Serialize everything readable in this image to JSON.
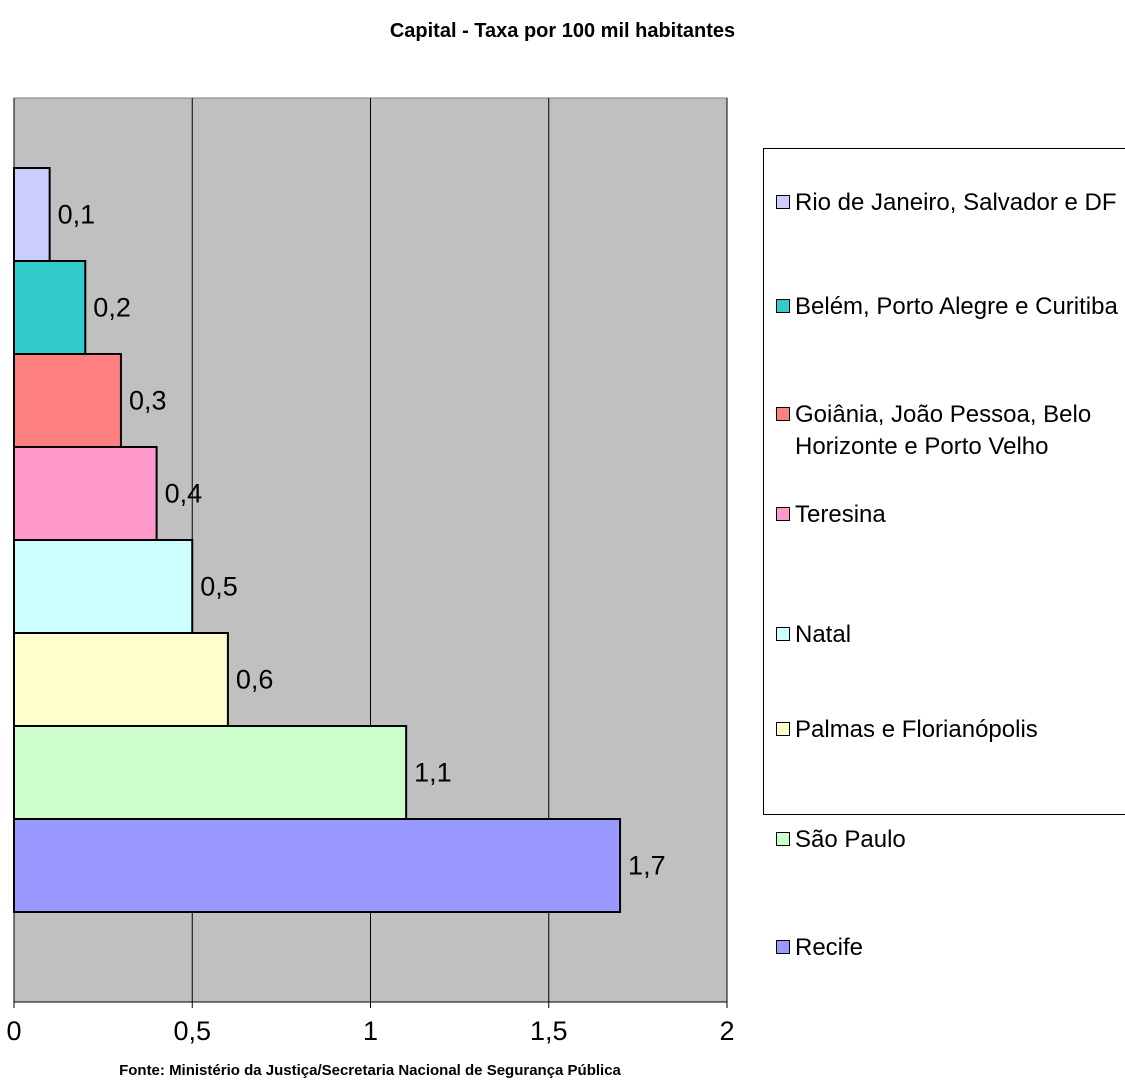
{
  "chart_data": {
    "type": "bar",
    "orientation": "horizontal",
    "title": "Capital - Taxa por 100 mil habitantes",
    "footer": "Fonte: Ministério da Justiça/Secretaria Nacional de Segurança Pública",
    "xlim": [
      0,
      2
    ],
    "x_ticks": [
      "0",
      "0,5",
      "1",
      "1,5",
      "2"
    ],
    "grid": "vertical",
    "plot_background": "#C0C0C0",
    "legend_position": "right",
    "series": [
      {
        "name": "Rio de Janeiro, Salvador e DF",
        "value": 0.1,
        "label": "0,1",
        "color": "#CCCCFF"
      },
      {
        "name": "Belém, Porto Alegre e Curitiba",
        "value": 0.2,
        "label": "0,2",
        "color": "#33CCCC"
      },
      {
        "name": "Goiânia, João Pessoa, Belo Horizonte e Porto Velho",
        "value": 0.3,
        "label": "0,3",
        "color": "#FF8080"
      },
      {
        "name": "Teresina",
        "value": 0.4,
        "label": "0,4",
        "color": "#FF99CC"
      },
      {
        "name": "Natal",
        "value": 0.5,
        "label": "0,5",
        "color": "#CCFFFF"
      },
      {
        "name": "Palmas e Florianópolis",
        "value": 0.6,
        "label": "0,6",
        "color": "#FFFFCC"
      },
      {
        "name": "São Paulo",
        "value": 1.1,
        "label": "1,1",
        "color": "#CCFFCC"
      },
      {
        "name": "Recife",
        "value": 1.7,
        "label": "1,7",
        "color": "#9999FF"
      }
    ]
  }
}
